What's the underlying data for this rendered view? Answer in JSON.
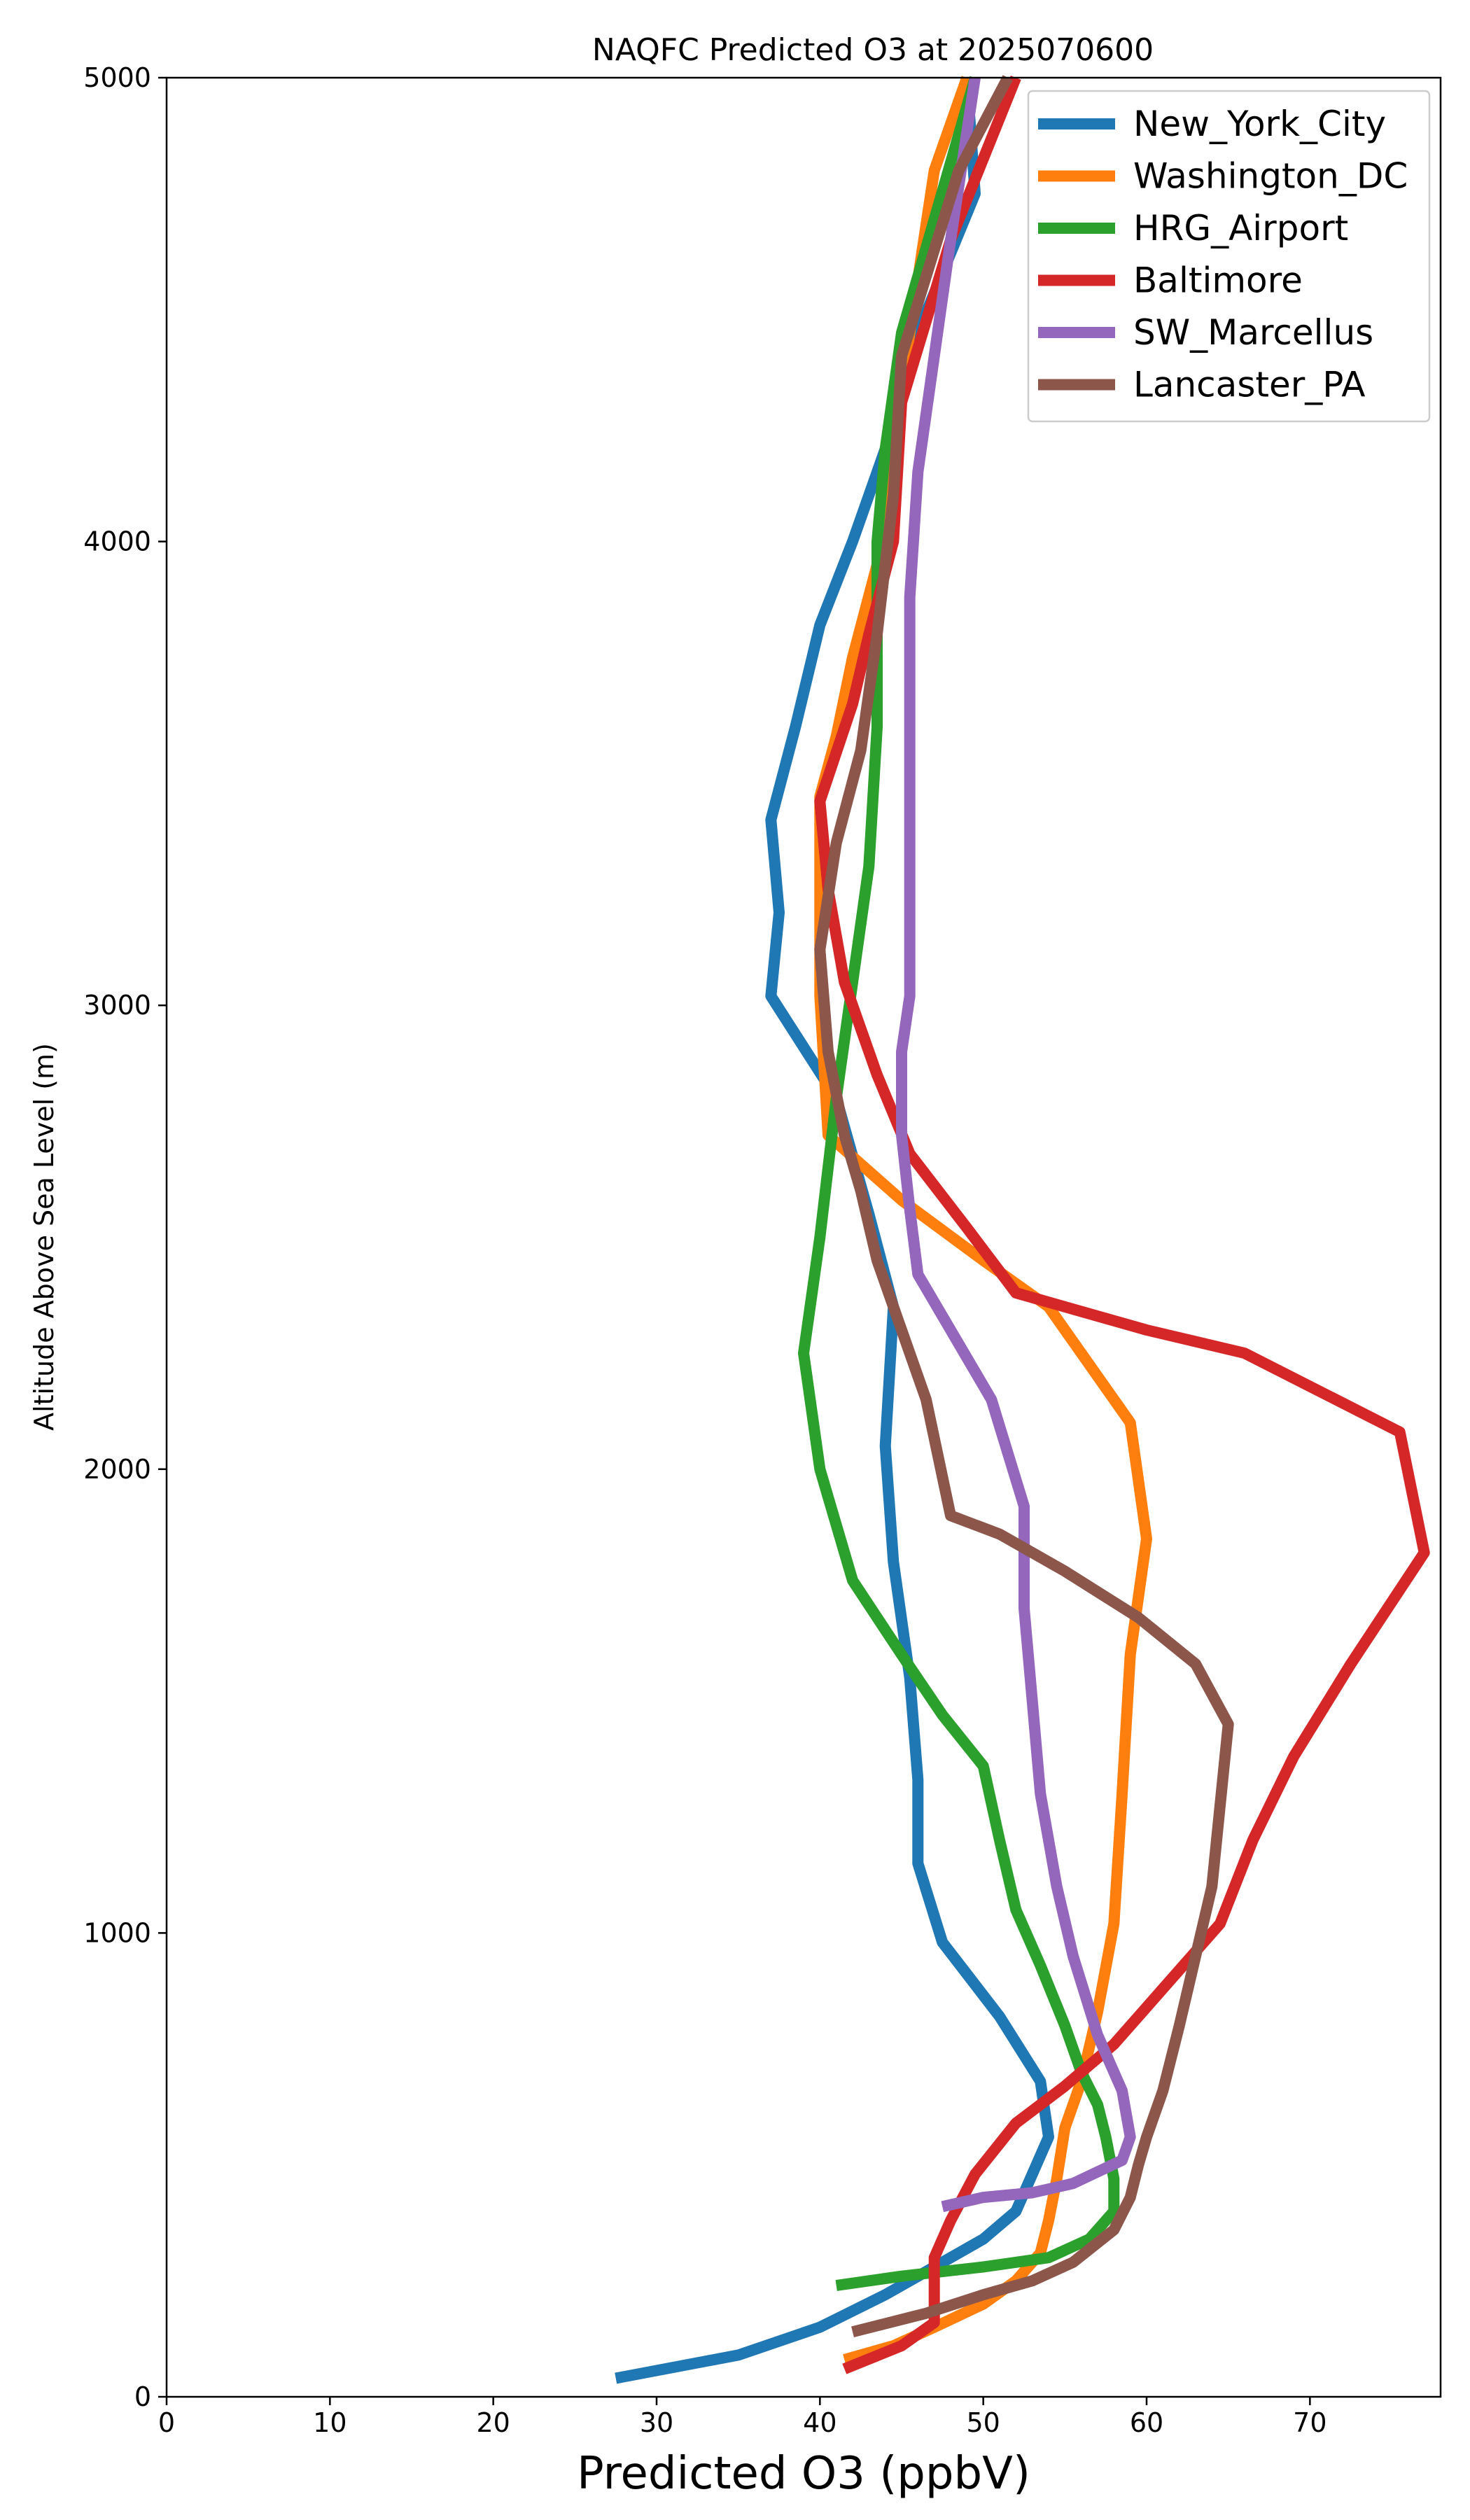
{
  "chart_data": {
    "type": "line",
    "title": "NAQFC Predicted O3 at 2025070600",
    "xlabel": "Predicted O3 (ppbV)",
    "ylabel": "Altitude Above Sea Level (m)",
    "xlim": [
      0,
      78
    ],
    "ylim": [
      0,
      5000
    ],
    "xticks": [
      0,
      10,
      20,
      30,
      40,
      50,
      60,
      70
    ],
    "yticks": [
      0,
      1000,
      2000,
      3000,
      4000,
      5000
    ],
    "grid": false,
    "legend_position": "top-right",
    "series": [
      {
        "name": "New_York_City",
        "color": "#1f77b4",
        "points": [
          [
            27.5,
            40
          ],
          [
            35,
            90
          ],
          [
            40,
            150
          ],
          [
            44,
            220
          ],
          [
            47,
            280
          ],
          [
            50,
            340
          ],
          [
            52,
            400
          ],
          [
            53,
            480
          ],
          [
            54,
            560
          ],
          [
            53.5,
            680
          ],
          [
            51,
            820
          ],
          [
            47.5,
            980
          ],
          [
            46,
            1150
          ],
          [
            46,
            1330
          ],
          [
            45.5,
            1550
          ],
          [
            44.5,
            1800
          ],
          [
            44,
            2050
          ],
          [
            44.5,
            2350
          ],
          [
            43,
            2550
          ],
          [
            41,
            2800
          ],
          [
            37,
            3020
          ],
          [
            37.5,
            3200
          ],
          [
            37,
            3400
          ],
          [
            38.5,
            3600
          ],
          [
            40,
            3820
          ],
          [
            42,
            4000
          ],
          [
            44,
            4200
          ],
          [
            46,
            4450
          ],
          [
            49.5,
            4750
          ],
          [
            49,
            5000
          ]
        ]
      },
      {
        "name": "Washington_DC",
        "color": "#ff7f0e",
        "points": [
          [
            41.5,
            80
          ],
          [
            44.5,
            110
          ],
          [
            47,
            150
          ],
          [
            50,
            200
          ],
          [
            52,
            250
          ],
          [
            53.5,
            310
          ],
          [
            54,
            380
          ],
          [
            54.5,
            470
          ],
          [
            55,
            580
          ],
          [
            56,
            680
          ],
          [
            57,
            830
          ],
          [
            58,
            1020
          ],
          [
            58.5,
            1300
          ],
          [
            59,
            1600
          ],
          [
            60,
            1850
          ],
          [
            59,
            2100
          ],
          [
            54,
            2350
          ],
          [
            50,
            2450
          ],
          [
            45,
            2580
          ],
          [
            40.5,
            2720
          ],
          [
            40,
            3020
          ],
          [
            40,
            3230
          ],
          [
            40,
            3450
          ],
          [
            41,
            3580
          ],
          [
            42,
            3750
          ],
          [
            43.5,
            3950
          ],
          [
            44.5,
            4200
          ],
          [
            45.5,
            4450
          ],
          [
            47,
            4800
          ],
          [
            49,
            5000
          ]
        ]
      },
      {
        "name": "HRG_Airport",
        "color": "#2ca02c",
        "points": [
          [
            41,
            240
          ],
          [
            45,
            260
          ],
          [
            50,
            280
          ],
          [
            54,
            300
          ],
          [
            56.5,
            340
          ],
          [
            58,
            400
          ],
          [
            58,
            470
          ],
          [
            57.5,
            560
          ],
          [
            57,
            630
          ],
          [
            56,
            700
          ],
          [
            55,
            800
          ],
          [
            53.5,
            930
          ],
          [
            52,
            1050
          ],
          [
            51,
            1200
          ],
          [
            50,
            1360
          ],
          [
            47.5,
            1470
          ],
          [
            45,
            1600
          ],
          [
            42,
            1760
          ],
          [
            40,
            2000
          ],
          [
            39,
            2250
          ],
          [
            40,
            2500
          ],
          [
            41,
            2800
          ],
          [
            42,
            3050
          ],
          [
            43,
            3300
          ],
          [
            43.5,
            3600
          ],
          [
            43.5,
            3800
          ],
          [
            43.5,
            4000
          ],
          [
            44,
            4200
          ],
          [
            45,
            4450
          ],
          [
            49.5,
            5000
          ]
        ]
      },
      {
        "name": "Baltimore",
        "color": "#d62728",
        "points": [
          [
            41.5,
            60
          ],
          [
            45,
            110
          ],
          [
            47,
            160
          ],
          [
            47,
            220
          ],
          [
            47,
            300
          ],
          [
            48,
            380
          ],
          [
            49.5,
            480
          ],
          [
            52,
            590
          ],
          [
            55,
            670
          ],
          [
            58,
            760
          ],
          [
            60,
            840
          ],
          [
            63,
            960
          ],
          [
            64.5,
            1020
          ],
          [
            66.5,
            1200
          ],
          [
            69,
            1380
          ],
          [
            72.5,
            1580
          ],
          [
            77,
            1820
          ],
          [
            75.5,
            2080
          ],
          [
            66,
            2250
          ],
          [
            60,
            2300
          ],
          [
            52,
            2380
          ],
          [
            49,
            2520
          ],
          [
            45.5,
            2680
          ],
          [
            43.5,
            2850
          ],
          [
            41.5,
            3050
          ],
          [
            40.5,
            3250
          ],
          [
            40,
            3440
          ],
          [
            42,
            3650
          ],
          [
            43,
            3800
          ],
          [
            44.5,
            4000
          ],
          [
            45,
            4300
          ],
          [
            48,
            4650
          ],
          [
            52,
            5000
          ]
        ]
      },
      {
        "name": "SW_Marcellus",
        "color": "#9467bd",
        "points": [
          [
            47.5,
            410
          ],
          [
            50,
            430
          ],
          [
            53,
            440
          ],
          [
            55.5,
            460
          ],
          [
            58.5,
            510
          ],
          [
            59,
            560
          ],
          [
            58.5,
            660
          ],
          [
            57,
            780
          ],
          [
            55.5,
            950
          ],
          [
            54.5,
            1100
          ],
          [
            53.5,
            1300
          ],
          [
            53,
            1500
          ],
          [
            52.5,
            1700
          ],
          [
            52.5,
            1920
          ],
          [
            50.5,
            2150
          ],
          [
            48,
            2300
          ],
          [
            46,
            2420
          ],
          [
            45.5,
            2560
          ],
          [
            45,
            2720
          ],
          [
            45,
            2900
          ],
          [
            45.5,
            3020
          ],
          [
            45.5,
            3300
          ],
          [
            45.5,
            3600
          ],
          [
            45.5,
            3880
          ],
          [
            46,
            4150
          ],
          [
            47,
            4400
          ],
          [
            48,
            4650
          ],
          [
            49.5,
            5000
          ]
        ]
      },
      {
        "name": "Lancaster_PA",
        "color": "#8c564b",
        "points": [
          [
            42,
            140
          ],
          [
            46.5,
            180
          ],
          [
            50,
            220
          ],
          [
            53,
            250
          ],
          [
            55.5,
            290
          ],
          [
            58,
            360
          ],
          [
            59,
            430
          ],
          [
            59.5,
            500
          ],
          [
            60,
            560
          ],
          [
            61,
            660
          ],
          [
            62,
            800
          ],
          [
            63,
            950
          ],
          [
            64,
            1100
          ],
          [
            65,
            1450
          ],
          [
            63,
            1580
          ],
          [
            59.5,
            1680
          ],
          [
            55,
            1780
          ],
          [
            51,
            1860
          ],
          [
            48,
            1900
          ],
          [
            46.5,
            2150
          ],
          [
            45,
            2300
          ],
          [
            43.5,
            2450
          ],
          [
            42.5,
            2600
          ],
          [
            41.5,
            2720
          ],
          [
            40.5,
            2900
          ],
          [
            40,
            3120
          ],
          [
            41,
            3350
          ],
          [
            42.5,
            3550
          ],
          [
            43.5,
            3800
          ],
          [
            44.5,
            4100
          ],
          [
            45,
            4400
          ],
          [
            48.5,
            4800
          ],
          [
            51.5,
            5000
          ]
        ]
      }
    ]
  }
}
